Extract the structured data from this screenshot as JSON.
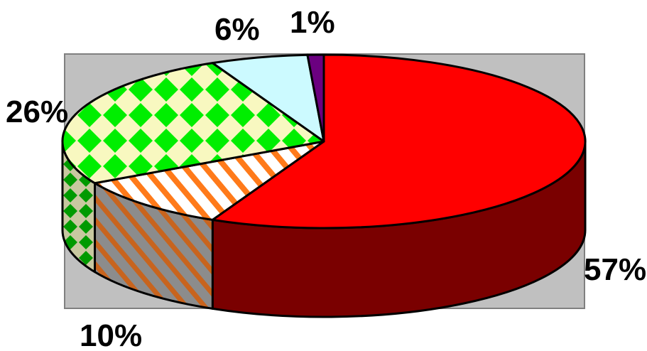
{
  "chart_data": {
    "type": "pie",
    "three_d": true,
    "background": "gray-plot-area",
    "slices": [
      {
        "label": "57%",
        "value": 57,
        "top_color": "#ff0000",
        "side_color": "#7a0000",
        "pattern": "solid"
      },
      {
        "label": "10%",
        "value": 10,
        "top_color": "#ffffff",
        "side_color": "#8c8c8c",
        "pattern": "diagonal-stripes",
        "stripe_color": "#ff7a1a"
      },
      {
        "label": "26%",
        "value": 26,
        "top_color": "#f8f8c0",
        "side_color": "#c8c8a0",
        "pattern": "diamond-checker",
        "pattern_color": "#00ee00",
        "side_pattern_color": "#009a00"
      },
      {
        "label": "6%",
        "value": 6,
        "top_color": "#ccfaff",
        "side_color": "#9ad8e0",
        "pattern": "solid"
      },
      {
        "label": "1%",
        "value": 1,
        "top_color": "#6b0080",
        "side_color": "#400050",
        "pattern": "solid"
      }
    ],
    "colors": {
      "plot_background": "#c0c0c0",
      "outline": "#000000"
    }
  }
}
